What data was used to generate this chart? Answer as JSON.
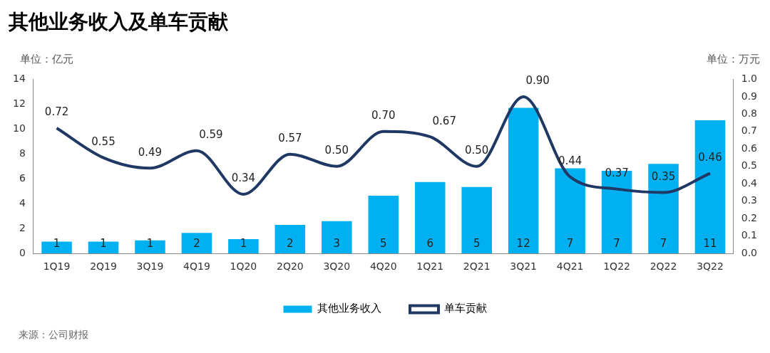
{
  "chart_data": {
    "type": "bar",
    "title": "其他业务收入及单车贡献",
    "ylabel": "单位：亿元",
    "y2label": "单位：万元",
    "categories": [
      "1Q19",
      "2Q19",
      "3Q19",
      "4Q19",
      "1Q20",
      "2Q20",
      "3Q20",
      "4Q20",
      "1Q21",
      "2Q21",
      "3Q21",
      "4Q21",
      "1Q22",
      "2Q22",
      "3Q22"
    ],
    "series": [
      {
        "name": "其他业务收入",
        "color": "#00b0f0",
        "values": [
          0.95,
          0.95,
          1.05,
          1.65,
          1.15,
          2.3,
          2.6,
          4.65,
          5.75,
          5.35,
          11.7,
          6.85,
          6.65,
          7.2,
          10.7
        ],
        "value_labels": [
          "1",
          "1",
          "1",
          "2",
          "1",
          "2",
          "3",
          "5",
          "6",
          "5",
          "12",
          "7",
          "7",
          "7",
          "11"
        ]
      },
      {
        "name": "单车贡献",
        "type": "line",
        "axis": "y2",
        "color": "#1f3864",
        "values": [
          0.72,
          0.55,
          0.49,
          0.59,
          0.34,
          0.57,
          0.5,
          0.7,
          0.67,
          0.5,
          0.9,
          0.44,
          0.37,
          0.35,
          0.46
        ],
        "value_labels": [
          "0.72",
          "0.55",
          "0.49",
          "0.59",
          "0.34",
          "0.57",
          "0.50",
          "0.70",
          "0.67",
          "0.50",
          "0.90",
          "0.44",
          "0.37",
          "0.35",
          "0.46"
        ]
      }
    ],
    "ylim": [
      0,
      14
    ],
    "yticks": [
      0,
      2,
      4,
      6,
      8,
      10,
      12,
      14
    ],
    "y2lim": [
      0,
      1
    ],
    "y2ticks": [
      {
        "value": 0,
        "label": "0.0"
      },
      {
        "value": 0.1,
        "label": "0.1"
      },
      {
        "value": 0.2,
        "label": "0.2"
      },
      {
        "value": 0.3,
        "label": "0.3"
      },
      {
        "value": 0.4,
        "label": "0.4"
      },
      {
        "value": 0.5,
        "label": "0.5"
      },
      {
        "value": 0.6,
        "label": "0.6"
      },
      {
        "value": 0.7,
        "label": "0.7"
      },
      {
        "value": 0.8,
        "label": "0.8"
      },
      {
        "value": 0.9,
        "label": "0.9"
      },
      {
        "value": 1,
        "label": "1.0"
      }
    ],
    "grid": false,
    "legend": "bottom",
    "marker": "none",
    "annotations": [
      "来源：公司财报"
    ]
  }
}
